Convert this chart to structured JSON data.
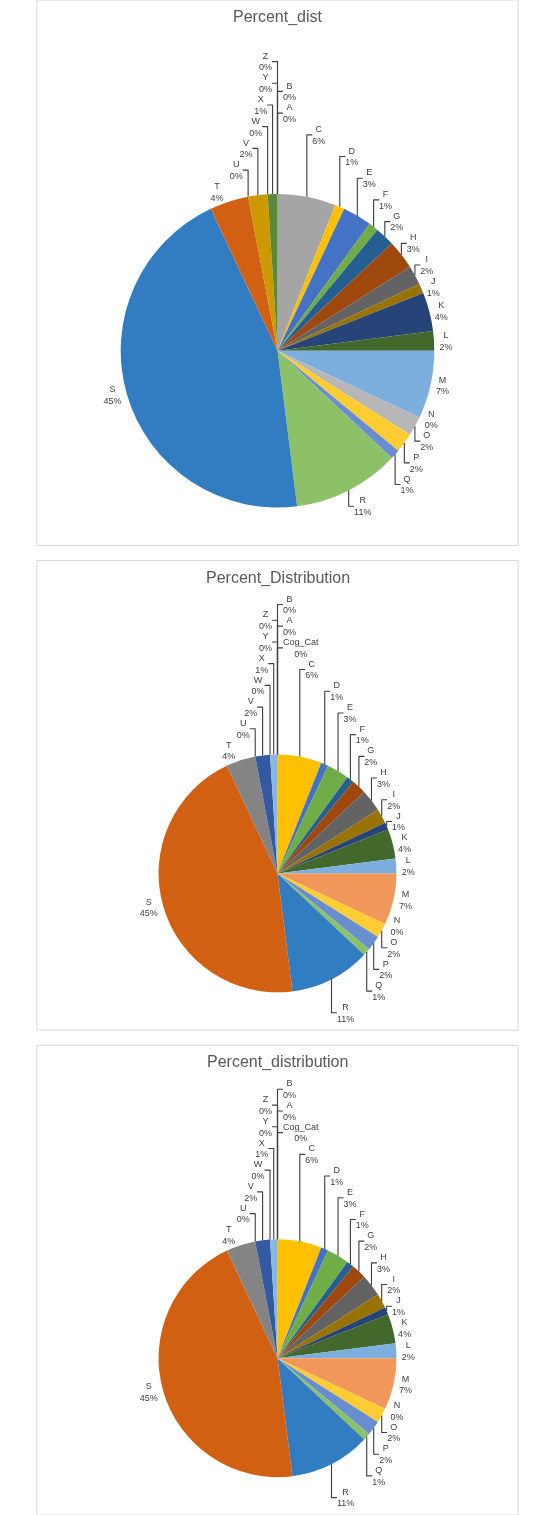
{
  "chart_data": [
    {
      "type": "pie",
      "title": "Percent_dist",
      "categories": [
        "A",
        "B",
        "C",
        "D",
        "E",
        "F",
        "G",
        "H",
        "I",
        "J",
        "K",
        "L",
        "M",
        "N",
        "O",
        "P",
        "Q",
        "R",
        "S",
        "T",
        "U",
        "V",
        "W",
        "X",
        "Y",
        "Z"
      ],
      "values": [
        0,
        0,
        6,
        1,
        3,
        1,
        2,
        3,
        2,
        1,
        4,
        2,
        7,
        0,
        2,
        2,
        1,
        11,
        45,
        4,
        0,
        2,
        0,
        1,
        0,
        0
      ],
      "value_labels": [
        "0%",
        "0%",
        "6%",
        "1%",
        "3%",
        "1%",
        "2%",
        "3%",
        "2%",
        "1%",
        "4%",
        "2%",
        "7%",
        "0%",
        "2%",
        "2%",
        "1%",
        "11%",
        "45%",
        "4%",
        "0%",
        "2%",
        "0%",
        "1%",
        "0%",
        "0%"
      ],
      "colors": [
        "#5b9bd5",
        "#ed7d31",
        "#a5a5a5",
        "#ffc000",
        "#4472c4",
        "#70ad47",
        "#255e91",
        "#9e480e",
        "#636363",
        "#997300",
        "#264478",
        "#43682b",
        "#7cafdd",
        "#f1975a",
        "#b7b7b7",
        "#ffcd33",
        "#698ed0",
        "#8cc168",
        "#327dc2",
        "#d26012",
        "#848484",
        "#cc9a00",
        "#335aa1",
        "#5a8a39",
        "#8cb4e0",
        "#f4a46c"
      ],
      "legend": false
    },
    {
      "type": "pie",
      "title": "Percent_Distribution",
      "categories": [
        "Cog_Cat",
        "A",
        "B",
        "C",
        "D",
        "E",
        "F",
        "G",
        "H",
        "I",
        "J",
        "K",
        "L",
        "M",
        "N",
        "O",
        "P",
        "Q",
        "R",
        "S",
        "T",
        "U",
        "V",
        "W",
        "X",
        "Y",
        "Z"
      ],
      "values": [
        0,
        0,
        0,
        6,
        1,
        3,
        1,
        2,
        3,
        2,
        1,
        4,
        2,
        7,
        0,
        2,
        2,
        1,
        11,
        45,
        4,
        0,
        2,
        0,
        1,
        0,
        0
      ],
      "value_labels": [
        "0%",
        "0%",
        "0%",
        "6%",
        "1%",
        "3%",
        "1%",
        "2%",
        "3%",
        "2%",
        "1%",
        "4%",
        "2%",
        "7%",
        "0%",
        "2%",
        "2%",
        "1%",
        "11%",
        "45%",
        "4%",
        "0%",
        "2%",
        "0%",
        "1%",
        "0%",
        "0%"
      ],
      "colors": [
        "#5b9bd5",
        "#ed7d31",
        "#a5a5a5",
        "#ffc000",
        "#4472c4",
        "#70ad47",
        "#255e91",
        "#9e480e",
        "#636363",
        "#997300",
        "#264478",
        "#43682b",
        "#7cafdd",
        "#f1975a",
        "#b7b7b7",
        "#ffcd33",
        "#698ed0",
        "#8cc168",
        "#327dc2",
        "#d26012",
        "#848484",
        "#cc9a00",
        "#335aa1",
        "#5a8a39",
        "#8cb4e0",
        "#f4a46c",
        "#c3c3c3"
      ],
      "legend": false
    },
    {
      "type": "pie",
      "title": "Percent_distribution",
      "categories": [
        "Cog_Cat",
        "A",
        "B",
        "C",
        "D",
        "E",
        "F",
        "G",
        "H",
        "I",
        "J",
        "K",
        "L",
        "M",
        "N",
        "O",
        "P",
        "Q",
        "R",
        "S",
        "T",
        "U",
        "V",
        "W",
        "X",
        "Y",
        "Z"
      ],
      "values": [
        0,
        0,
        0,
        6,
        1,
        3,
        1,
        2,
        3,
        2,
        1,
        4,
        2,
        7,
        0,
        2,
        2,
        1,
        11,
        45,
        4,
        0,
        2,
        0,
        1,
        0,
        0
      ],
      "value_labels": [
        "0%",
        "0%",
        "0%",
        "6%",
        "1%",
        "3%",
        "1%",
        "2%",
        "3%",
        "2%",
        "1%",
        "4%",
        "2%",
        "7%",
        "0%",
        "2%",
        "2%",
        "1%",
        "11%",
        "45%",
        "4%",
        "0%",
        "2%",
        "0%",
        "1%",
        "0%",
        "0%"
      ],
      "colors": [
        "#5b9bd5",
        "#ed7d31",
        "#a5a5a5",
        "#ffc000",
        "#4472c4",
        "#70ad47",
        "#255e91",
        "#9e480e",
        "#636363",
        "#997300",
        "#264478",
        "#43682b",
        "#7cafdd",
        "#f1975a",
        "#b7b7b7",
        "#ffcd33",
        "#698ed0",
        "#8cc168",
        "#327dc2",
        "#d26012",
        "#848484",
        "#cc9a00",
        "#335aa1",
        "#5a8a39",
        "#8cb4e0",
        "#f4a46c",
        "#c3c3c3"
      ],
      "legend": false
    }
  ]
}
